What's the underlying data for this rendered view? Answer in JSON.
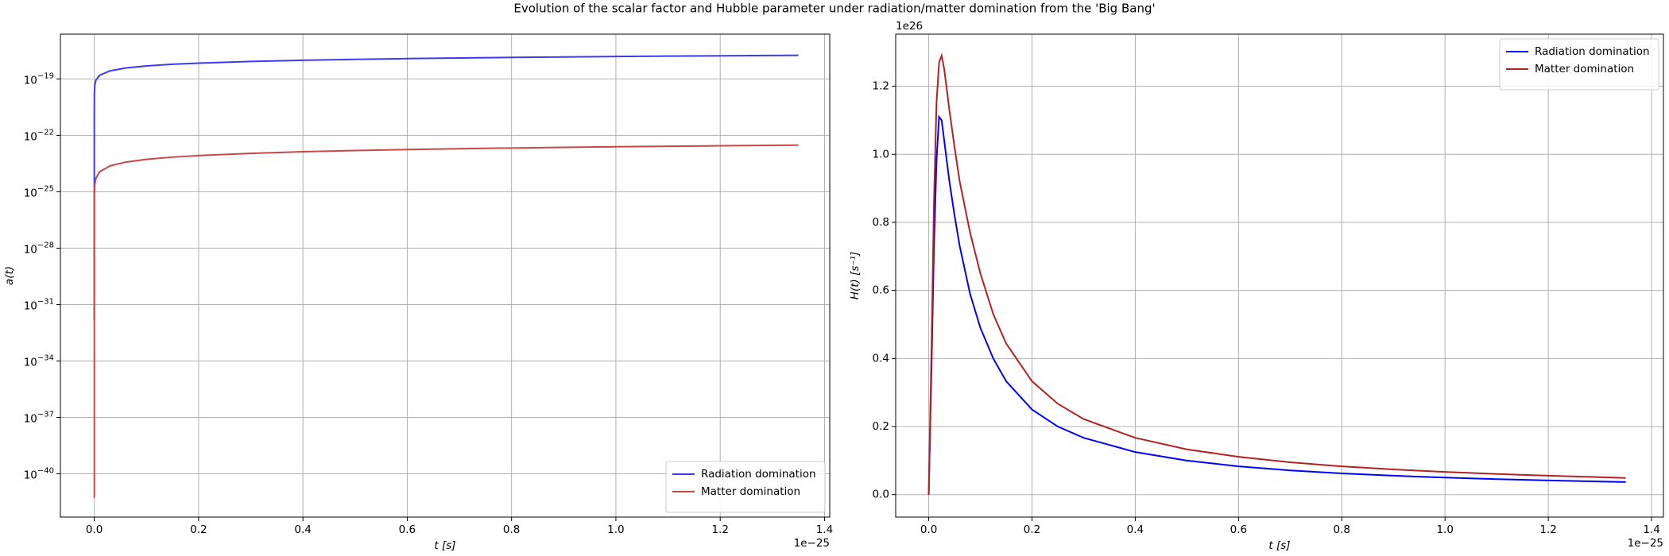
{
  "title": "Evolution of the scalar factor and Hubble parameter under radiation/matter domination from the 'Big Bang'",
  "chart_data": [
    {
      "type": "line",
      "y_scale": "log",
      "grid": true,
      "legend_loc": "lower right",
      "x_label": "t [s]",
      "y_label": "a(t)",
      "x_offset_label": "1e−25",
      "xlim": [
        -0.065,
        1.41
      ],
      "xticks": [
        {
          "value": 0,
          "label": "0.0"
        },
        0.2,
        0.4,
        0.6,
        0.8,
        {
          "value": 1,
          "label": "1.0"
        },
        1.2,
        1.4
      ],
      "ylim": [
        5e-43,
        2.4e-17
      ],
      "yticks": [
        {
          "value": 1e-19,
          "label": "10",
          "exponent": "−19"
        },
        {
          "value": 1e-22,
          "label": "10",
          "exponent": "−22"
        },
        {
          "value": 1e-25,
          "label": "10",
          "exponent": "−25"
        },
        {
          "value": 1e-28,
          "label": "10",
          "exponent": "−28"
        },
        {
          "value": 1e-31,
          "label": "10",
          "exponent": "−31"
        },
        {
          "value": 1e-34,
          "label": "10",
          "exponent": "−34"
        },
        {
          "value": 1e-37,
          "label": "10",
          "exponent": "−37"
        },
        {
          "value": 1e-40,
          "label": "10",
          "exponent": "−40"
        }
      ],
      "x": [
        1e-28,
        1e-06,
        0.0001,
        0.001,
        0.003,
        0.01,
        0.03,
        0.06,
        0.1,
        0.15,
        0.2,
        0.3,
        0.4,
        0.5,
        0.6,
        0.7,
        0.8,
        0.9,
        1.0,
        1.1,
        1.2,
        1.35
      ],
      "series": [
        {
          "name": "Radiation domination",
          "color": "#3a3af5",
          "values": [
            1.55e-32,
            1.55e-21,
            1.55e-20,
            4.9e-20,
            8.49e-20,
            1.55e-19,
            2.68e-19,
            3.8e-19,
            4.9e-19,
            6e-19,
            6.93e-19,
            8.49e-19,
            9.8e-19,
            1.1e-18,
            1.2e-18,
            1.3e-18,
            1.39e-18,
            1.47e-18,
            1.55e-18,
            1.63e-18,
            1.7e-18,
            1.8e-18
          ]
        },
        {
          "name": "Matter domination",
          "color": "#c84848",
          "values": [
            5.3e-42,
            2.46e-27,
            5.3e-26,
            2.46e-25,
            5.12e-25,
            1.14e-24,
            2.37e-24,
            3.77e-24,
            5.3e-24,
            6.94e-24,
            8.41e-24,
            1.1e-23,
            1.34e-23,
            1.55e-23,
            1.75e-23,
            1.94e-23,
            2.12e-23,
            2.29e-23,
            2.46e-23,
            2.62e-23,
            2.78e-23,
            3e-23
          ]
        }
      ]
    },
    {
      "type": "line",
      "y_scale": "linear",
      "grid": true,
      "legend_loc": "upper right",
      "x_label": "t [s]",
      "y_label": "H(t) [s⁻¹]",
      "x_offset_label": "1e−25",
      "y_offset_label": "1e26",
      "xlim": [
        -0.064,
        1.423
      ],
      "xticks": [
        {
          "value": 0,
          "label": "0.0"
        },
        0.2,
        0.4,
        0.6,
        0.8,
        {
          "value": 1,
          "label": "1.0"
        },
        1.2,
        1.4
      ],
      "ylim": [
        -0.066,
        1.353
      ],
      "yticks": [
        {
          "value": 0,
          "label": "0.0"
        },
        0.2,
        0.4,
        0.6,
        0.8,
        {
          "value": 1,
          "label": "1.0"
        },
        1.2
      ],
      "x": [
        0,
        0.005,
        0.01,
        0.015,
        0.02,
        0.025,
        0.03,
        0.04,
        0.05,
        0.06,
        0.08,
        0.1,
        0.125,
        0.15,
        0.2,
        0.25,
        0.3,
        0.4,
        0.5,
        0.6,
        0.7,
        0.8,
        0.9,
        1.0,
        1.1,
        1.2,
        1.35
      ],
      "series": [
        {
          "name": "Radiation domination",
          "color": "#0000ff",
          "values": [
            0,
            0.35,
            0.72,
            0.98,
            1.11,
            1.1,
            1.04,
            0.92,
            0.82,
            0.73,
            0.59,
            0.49,
            0.4,
            0.333,
            0.25,
            0.2,
            0.167,
            0.125,
            0.1,
            0.083,
            0.071,
            0.0625,
            0.0556,
            0.05,
            0.0455,
            0.0417,
            0.037
          ]
        },
        {
          "name": "Matter domination",
          "color": "#b22222",
          "values": [
            0,
            0.4,
            0.85,
            1.15,
            1.27,
            1.29,
            1.25,
            1.13,
            1.02,
            0.92,
            0.77,
            0.65,
            0.53,
            0.444,
            0.333,
            0.267,
            0.222,
            0.167,
            0.133,
            0.111,
            0.095,
            0.083,
            0.074,
            0.0667,
            0.0606,
            0.0556,
            0.049
          ]
        }
      ]
    }
  ]
}
